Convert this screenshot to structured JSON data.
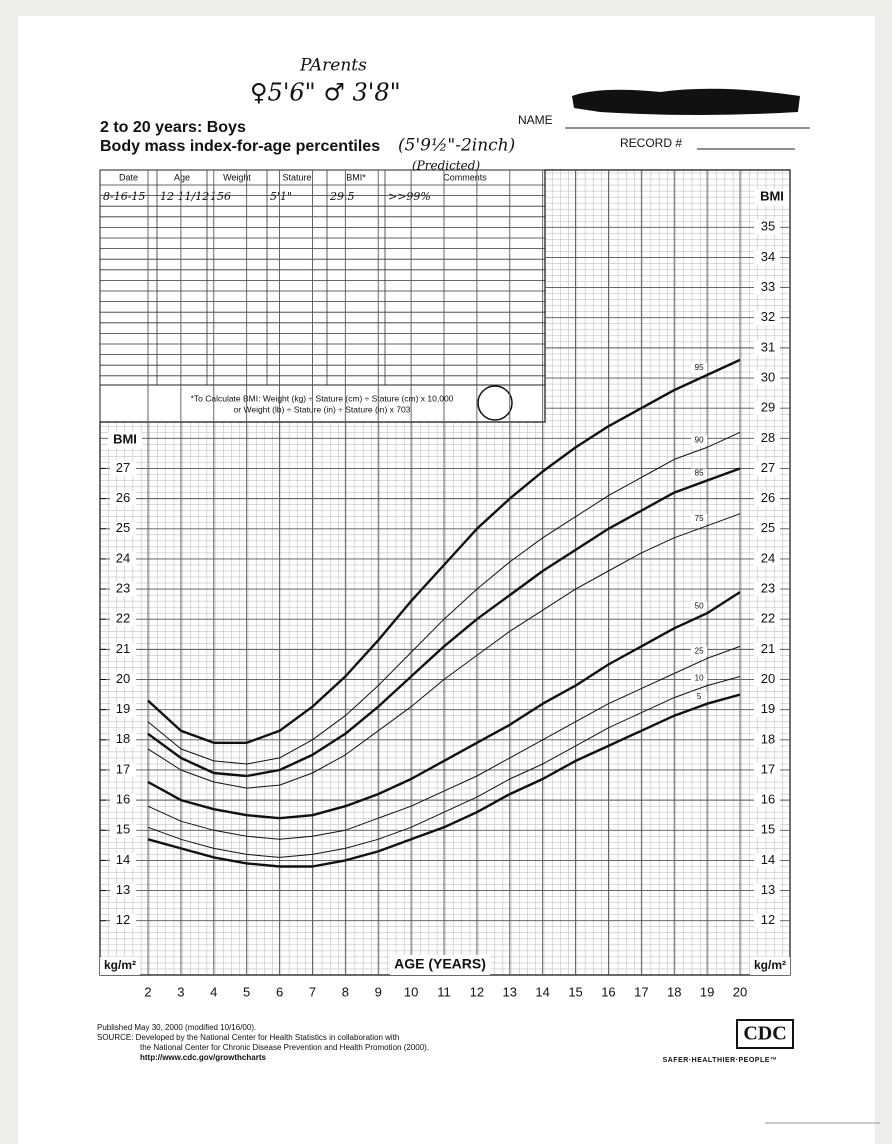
{
  "header": {
    "parents_note": "PArents",
    "parent_heights": "♀5'6\"  ♂ 3'8\"",
    "title_line1": "2 to 20 years: Boys",
    "title_line2": "Body mass index-for-age percentiles",
    "predicted_height": "(5'9½\"-2inch)",
    "predicted_note": "(Predicted)",
    "name_label": "NAME",
    "record_label": "RECORD #"
  },
  "table": {
    "columns": [
      "Date",
      "Age",
      "Weight",
      "Stature",
      "BMI*",
      "Comments"
    ],
    "rows": [
      [
        "8-16-15",
        "12 11/12",
        "156",
        "5'1\"",
        "29.5",
        ">>99%"
      ]
    ]
  },
  "bmi_note": {
    "line1": "*To Calculate BMI: Weight (kg) ÷ Stature (cm) ÷ Stature (cm) x 10,000",
    "line2": "or Weight (lb) ÷ Stature (in) ÷ Stature (in) x 703"
  },
  "chart_data": {
    "type": "line",
    "x_label": "AGE (YEARS)",
    "y_label": "BMI",
    "y_unit": "kg/m²",
    "x": [
      2,
      3,
      4,
      5,
      6,
      7,
      8,
      9,
      10,
      11,
      12,
      13,
      14,
      15,
      16,
      17,
      18,
      19,
      20
    ],
    "xlim": [
      2,
      20
    ],
    "xticks": [
      2,
      3,
      4,
      5,
      6,
      7,
      8,
      9,
      10,
      11,
      12,
      13,
      14,
      15,
      16,
      17,
      18,
      19,
      20
    ],
    "ylim": [
      10.2,
      36.9
    ],
    "yticks": [
      12,
      13,
      14,
      15,
      16,
      17,
      18,
      19,
      20,
      21,
      22,
      23,
      24,
      25,
      26,
      27,
      28,
      29,
      30,
      31,
      32,
      33,
      34,
      35
    ],
    "y2lim": [
      10.2,
      29.7
    ],
    "y2ticks": [
      12,
      13,
      14,
      15,
      16,
      17,
      18,
      19,
      20,
      21,
      22,
      23,
      24,
      25,
      26,
      27
    ],
    "grid": true,
    "series": [
      {
        "name": "95",
        "color": "#111111",
        "style": "bold",
        "values": [
          19.3,
          18.3,
          17.9,
          17.9,
          18.3,
          19.1,
          20.1,
          21.3,
          22.6,
          23.8,
          25.0,
          26.0,
          26.9,
          27.7,
          28.4,
          29.0,
          29.6,
          30.1,
          30.6
        ]
      },
      {
        "name": "90",
        "color": "#111111",
        "style": "thin",
        "values": [
          18.6,
          17.7,
          17.3,
          17.2,
          17.4,
          18.0,
          18.8,
          19.8,
          20.9,
          22.0,
          23.0,
          23.9,
          24.7,
          25.4,
          26.1,
          26.7,
          27.3,
          27.7,
          28.2
        ]
      },
      {
        "name": "85",
        "color": "#111111",
        "style": "bold",
        "values": [
          18.2,
          17.4,
          16.9,
          16.8,
          17.0,
          17.5,
          18.2,
          19.1,
          20.1,
          21.1,
          22.0,
          22.8,
          23.6,
          24.3,
          25.0,
          25.6,
          26.2,
          26.6,
          27.0
        ]
      },
      {
        "name": "75",
        "color": "#111111",
        "style": "thin",
        "values": [
          17.7,
          17.0,
          16.6,
          16.4,
          16.5,
          16.9,
          17.5,
          18.3,
          19.1,
          20.0,
          20.8,
          21.6,
          22.3,
          23.0,
          23.6,
          24.2,
          24.7,
          25.1,
          25.5
        ]
      },
      {
        "name": "50",
        "color": "#111111",
        "style": "bold",
        "values": [
          16.6,
          16.0,
          15.7,
          15.5,
          15.4,
          15.5,
          15.8,
          16.2,
          16.7,
          17.3,
          17.9,
          18.5,
          19.2,
          19.8,
          20.5,
          21.1,
          21.7,
          22.2,
          22.9
        ]
      },
      {
        "name": "25",
        "color": "#111111",
        "style": "thin",
        "values": [
          15.8,
          15.3,
          15.0,
          14.8,
          14.7,
          14.8,
          15.0,
          15.4,
          15.8,
          16.3,
          16.8,
          17.4,
          18.0,
          18.6,
          19.2,
          19.7,
          20.2,
          20.7,
          21.1
        ]
      },
      {
        "name": "10",
        "color": "#111111",
        "style": "thin",
        "values": [
          15.1,
          14.7,
          14.4,
          14.2,
          14.1,
          14.2,
          14.4,
          14.7,
          15.1,
          15.6,
          16.1,
          16.7,
          17.2,
          17.8,
          18.4,
          18.9,
          19.4,
          19.8,
          20.1
        ]
      },
      {
        "name": "5",
        "color": "#111111",
        "style": "bold",
        "values": [
          14.7,
          14.4,
          14.1,
          13.9,
          13.8,
          13.8,
          14.0,
          14.3,
          14.7,
          15.1,
          15.6,
          16.2,
          16.7,
          17.3,
          17.8,
          18.3,
          18.8,
          19.2,
          19.5
        ]
      }
    ]
  },
  "footer": {
    "lines": [
      "Published May 30, 2000 (modified 10/16/00).",
      "SOURCE: Developed by the National Center for Health Statistics in collaboration with",
      "the National Center for Chronic Disease Prevention and Health Promotion (2000).",
      "http://www.cdc.gov/growthcharts"
    ],
    "logo": "CDC",
    "tagline": "SAFER·HEALTHIER·PEOPLE™"
  }
}
